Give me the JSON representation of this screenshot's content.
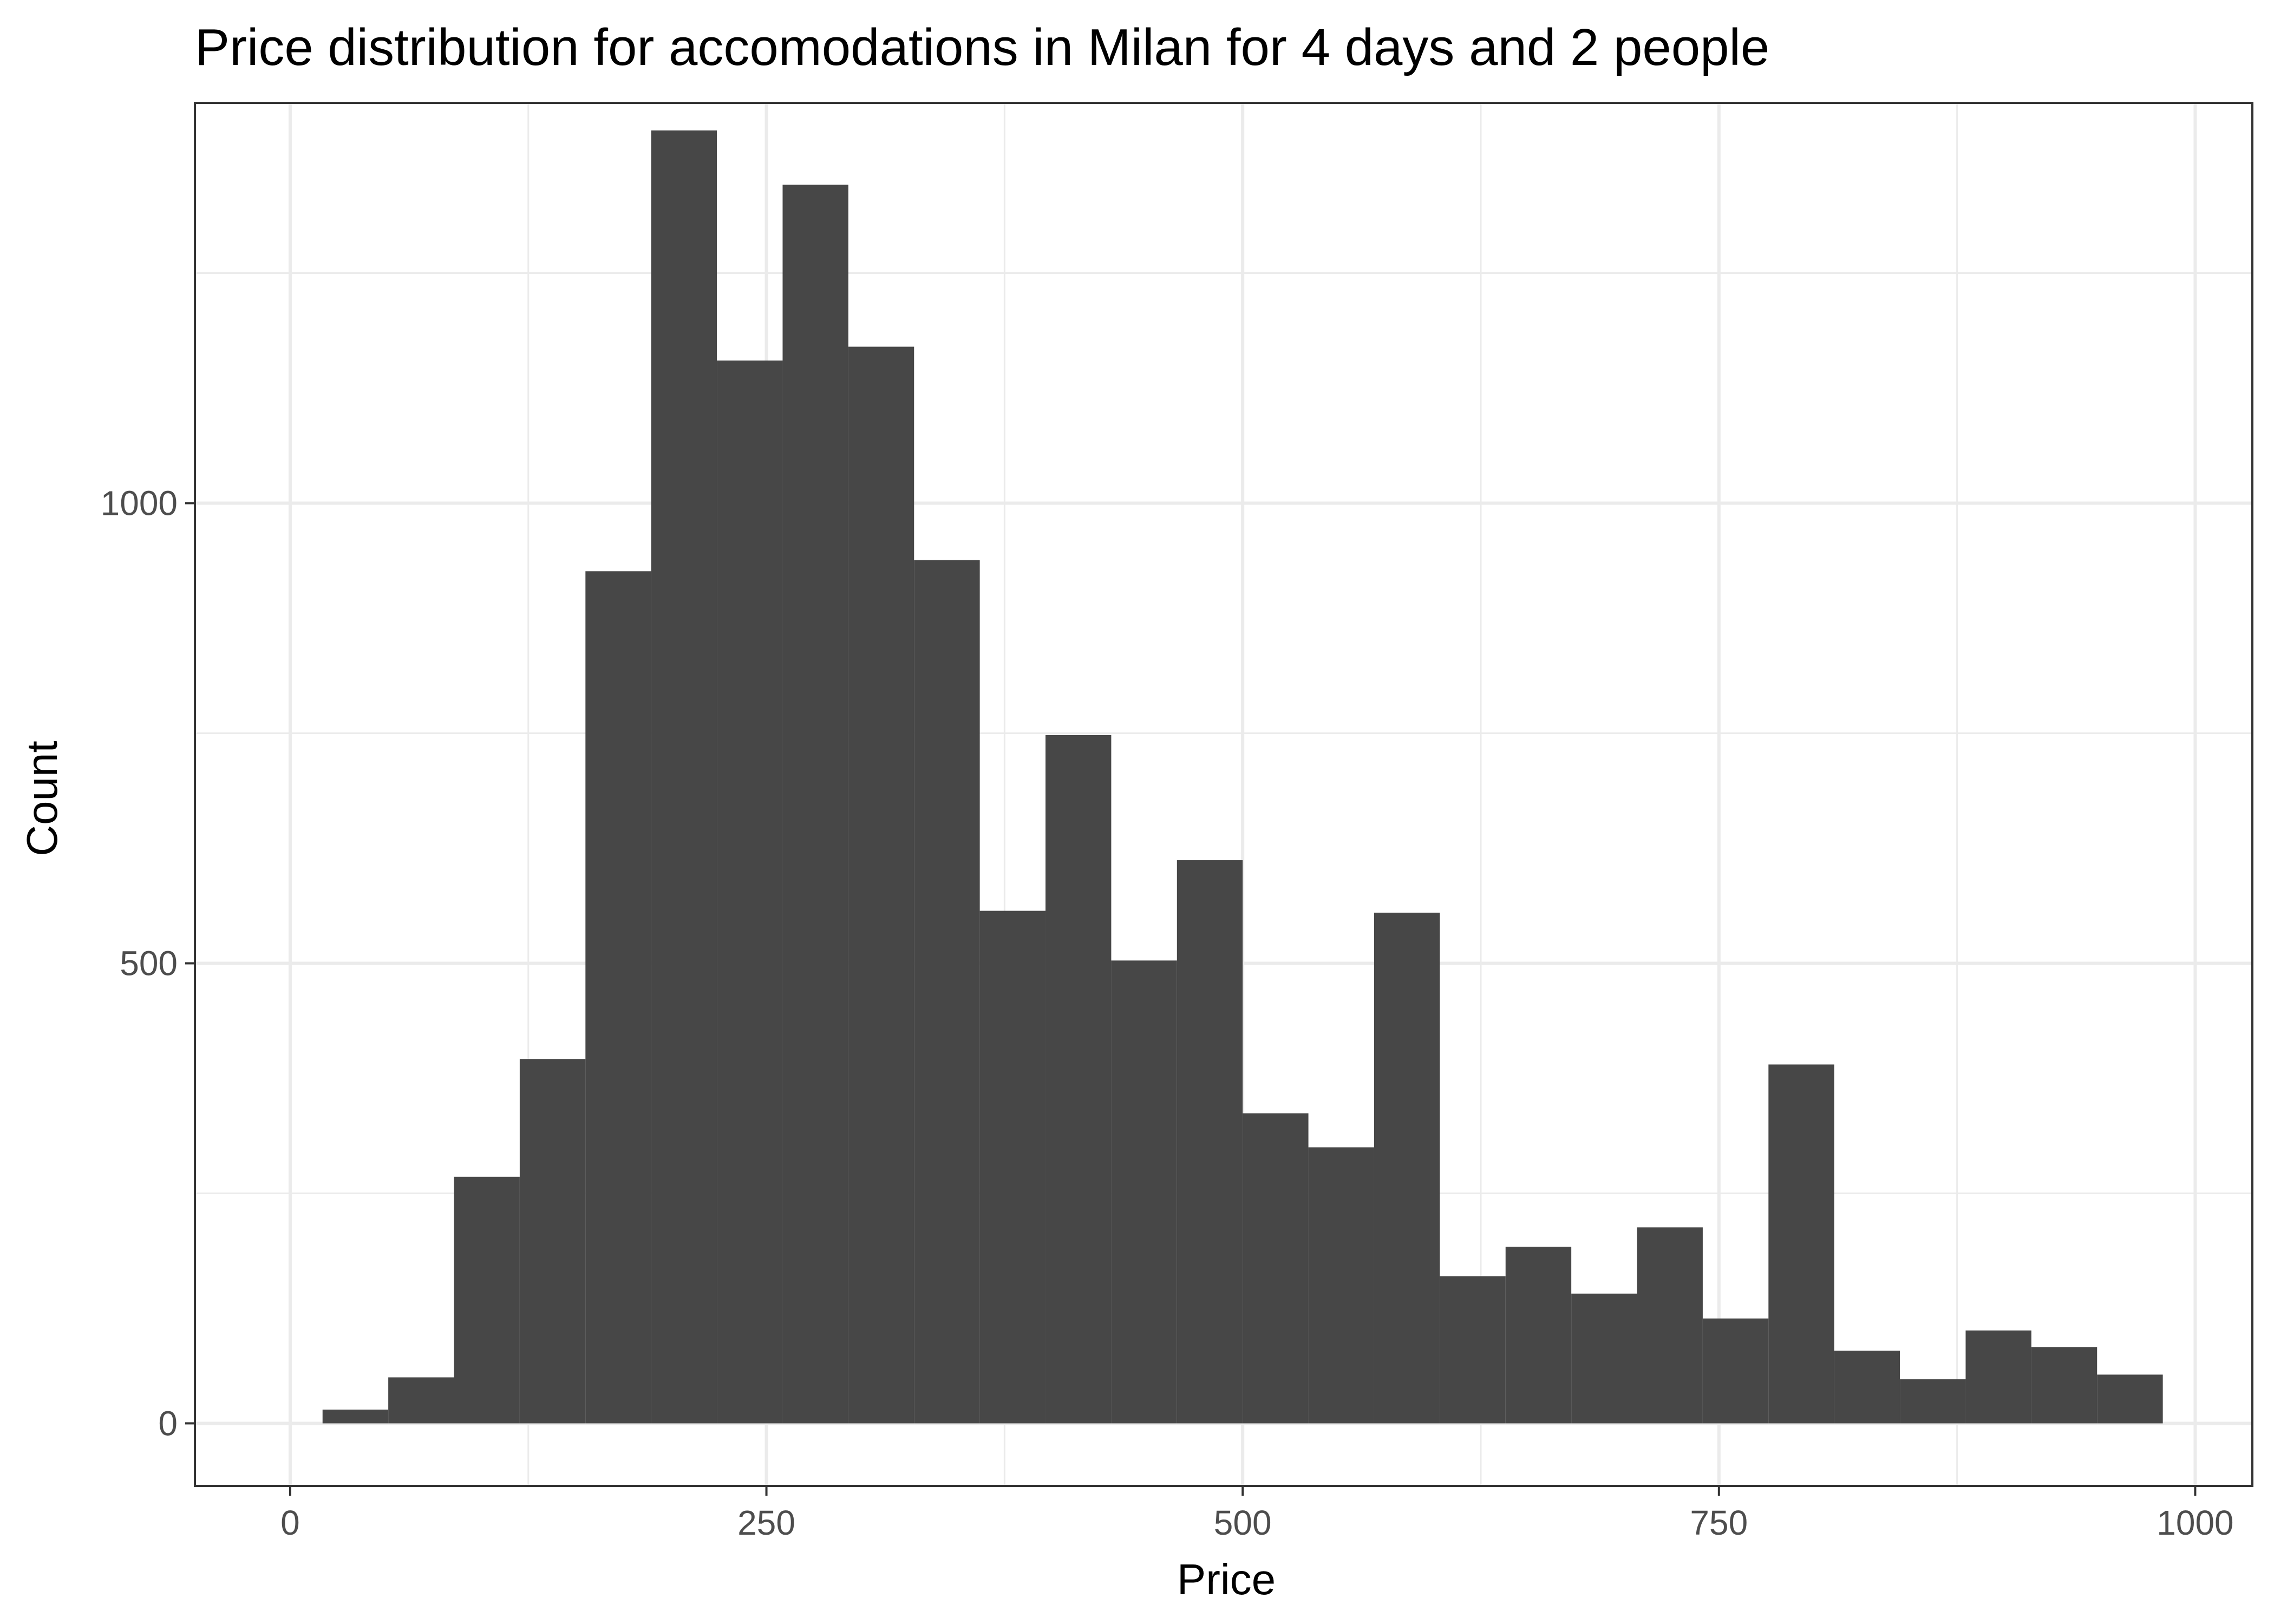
{
  "chart_data": {
    "type": "bar",
    "title": "Price distribution for accomodations in Milan for 4 days and 2 people",
    "xlabel": "Price",
    "ylabel": "Count",
    "xlim": [
      -50,
      1030
    ],
    "ylim": [
      -68,
      1435
    ],
    "x_ticks": [
      0,
      250,
      500,
      750,
      1000
    ],
    "x_tick_labels": [
      "0",
      "250",
      "500",
      "750",
      "1000"
    ],
    "y_ticks": [
      0,
      500,
      1000
    ],
    "y_tick_labels": [
      "0",
      "500",
      "1000"
    ],
    "bin_width": 34.5,
    "bins": [
      {
        "x0": 17.0,
        "x1": 51.5,
        "count": 15
      },
      {
        "x0": 51.5,
        "x1": 86.0,
        "count": 50
      },
      {
        "x0": 86.0,
        "x1": 120.5,
        "count": 268
      },
      {
        "x0": 120.5,
        "x1": 155.0,
        "count": 396
      },
      {
        "x0": 155.0,
        "x1": 189.5,
        "count": 926
      },
      {
        "x0": 189.5,
        "x1": 224.0,
        "count": 1405
      },
      {
        "x0": 224.0,
        "x1": 258.5,
        "count": 1155
      },
      {
        "x0": 258.5,
        "x1": 293.0,
        "count": 1346
      },
      {
        "x0": 293.0,
        "x1": 327.5,
        "count": 1170
      },
      {
        "x0": 327.5,
        "x1": 362.0,
        "count": 938
      },
      {
        "x0": 362.0,
        "x1": 396.5,
        "count": 557
      },
      {
        "x0": 396.5,
        "x1": 431.0,
        "count": 748
      },
      {
        "x0": 431.0,
        "x1": 465.5,
        "count": 503
      },
      {
        "x0": 465.5,
        "x1": 500.0,
        "count": 612
      },
      {
        "x0": 500.0,
        "x1": 534.5,
        "count": 337
      },
      {
        "x0": 534.5,
        "x1": 569.0,
        "count": 300
      },
      {
        "x0": 569.0,
        "x1": 603.5,
        "count": 555
      },
      {
        "x0": 603.5,
        "x1": 638.0,
        "count": 160
      },
      {
        "x0": 638.0,
        "x1": 672.5,
        "count": 192
      },
      {
        "x0": 672.5,
        "x1": 707.0,
        "count": 141
      },
      {
        "x0": 707.0,
        "x1": 741.5,
        "count": 213
      },
      {
        "x0": 741.5,
        "x1": 776.0,
        "count": 114
      },
      {
        "x0": 776.0,
        "x1": 810.5,
        "count": 390
      },
      {
        "x0": 810.5,
        "x1": 845.0,
        "count": 79
      },
      {
        "x0": 845.0,
        "x1": 879.5,
        "count": 48
      },
      {
        "x0": 879.5,
        "x1": 914.0,
        "count": 101
      },
      {
        "x0": 914.0,
        "x1": 948.5,
        "count": 83
      },
      {
        "x0": 948.5,
        "x1": 983.0,
        "count": 53
      }
    ],
    "grid": true,
    "theme": "bw",
    "colors": {
      "bar_fill": "#474747",
      "grid": "#ebebeb",
      "panel_border": "#333333",
      "tick_text": "#4d4d4d",
      "text": "#000000",
      "background": "#ffffff"
    }
  }
}
